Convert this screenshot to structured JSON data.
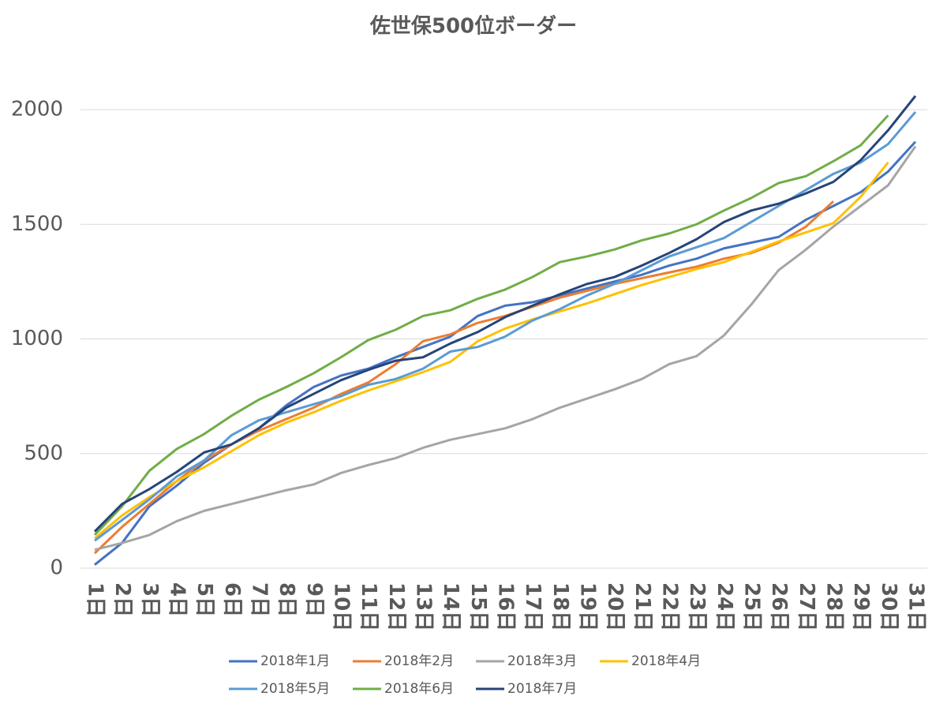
{
  "chart_data": {
    "type": "line",
    "title": "佐世保500位ボーダー",
    "categories": [
      "1日",
      "2日",
      "3日",
      "4日",
      "5日",
      "6日",
      "7日",
      "8日",
      "9日",
      "10日",
      "11日",
      "12日",
      "13日",
      "14日",
      "15日",
      "16日",
      "17日",
      "18日",
      "19日",
      "20日",
      "21日",
      "22日",
      "23日",
      "24日",
      "25日",
      "26日",
      "27日",
      "28日",
      "29日",
      "30日",
      "31日"
    ],
    "series": [
      {
        "name": "2018年1月",
        "color": "#4472c4",
        "values": [
          15,
          110,
          270,
          360,
          460,
          540,
          610,
          710,
          790,
          840,
          870,
          920,
          965,
          1010,
          1100,
          1145,
          1160,
          1190,
          1220,
          1250,
          1280,
          1320,
          1350,
          1395,
          1420,
          1445,
          1520,
          1580,
          1640,
          1730,
          1860
        ]
      },
      {
        "name": "2018年2月",
        "color": "#ed7d31",
        "values": [
          65,
          180,
          280,
          380,
          470,
          540,
          600,
          650,
          700,
          760,
          810,
          890,
          990,
          1020,
          1070,
          1100,
          1140,
          1180,
          1210,
          1240,
          1265,
          1290,
          1315,
          1350,
          1375,
          1420,
          1490,
          1600,
          null,
          null,
          null
        ]
      },
      {
        "name": "2018年3月",
        "color": "#a5a5a5",
        "values": [
          80,
          110,
          145,
          205,
          250,
          280,
          310,
          340,
          365,
          415,
          450,
          480,
          525,
          560,
          585,
          610,
          650,
          700,
          740,
          780,
          825,
          890,
          925,
          1015,
          1150,
          1300,
          1390,
          1490,
          1580,
          1670,
          1840
        ]
      },
      {
        "name": "2018年4月",
        "color": "#ffc000",
        "values": [
          130,
          230,
          310,
          380,
          440,
          510,
          580,
          635,
          680,
          730,
          775,
          815,
          855,
          900,
          990,
          1045,
          1085,
          1120,
          1155,
          1195,
          1235,
          1270,
          1305,
          1335,
          1380,
          1425,
          1465,
          1505,
          1620,
          1770,
          null
        ]
      },
      {
        "name": "2018年5月",
        "color": "#5b9bd5",
        "values": [
          120,
          210,
          300,
          400,
          470,
          580,
          645,
          680,
          715,
          750,
          800,
          825,
          870,
          945,
          965,
          1010,
          1080,
          1130,
          1190,
          1240,
          1300,
          1360,
          1400,
          1440,
          1510,
          1580,
          1650,
          1720,
          1770,
          1850,
          1990
        ]
      },
      {
        "name": "2018年6月",
        "color": "#70ad47",
        "values": [
          145,
          270,
          425,
          520,
          585,
          665,
          735,
          790,
          850,
          920,
          995,
          1040,
          1100,
          1125,
          1175,
          1215,
          1270,
          1335,
          1360,
          1390,
          1430,
          1460,
          1500,
          1560,
          1615,
          1680,
          1710,
          1775,
          1845,
          1975,
          null
        ]
      },
      {
        "name": "2018年7月",
        "color": "#264478",
        "values": [
          160,
          280,
          345,
          420,
          505,
          540,
          610,
          700,
          760,
          820,
          865,
          905,
          920,
          980,
          1030,
          1095,
          1145,
          1195,
          1240,
          1270,
          1320,
          1375,
          1435,
          1510,
          1560,
          1590,
          1635,
          1685,
          1780,
          1910,
          2060
        ]
      }
    ],
    "ylim": [
      0,
      2000
    ],
    "yticks": [
      0,
      500,
      1000,
      1500,
      2000
    ],
    "grid": true,
    "legend": "bottom"
  }
}
